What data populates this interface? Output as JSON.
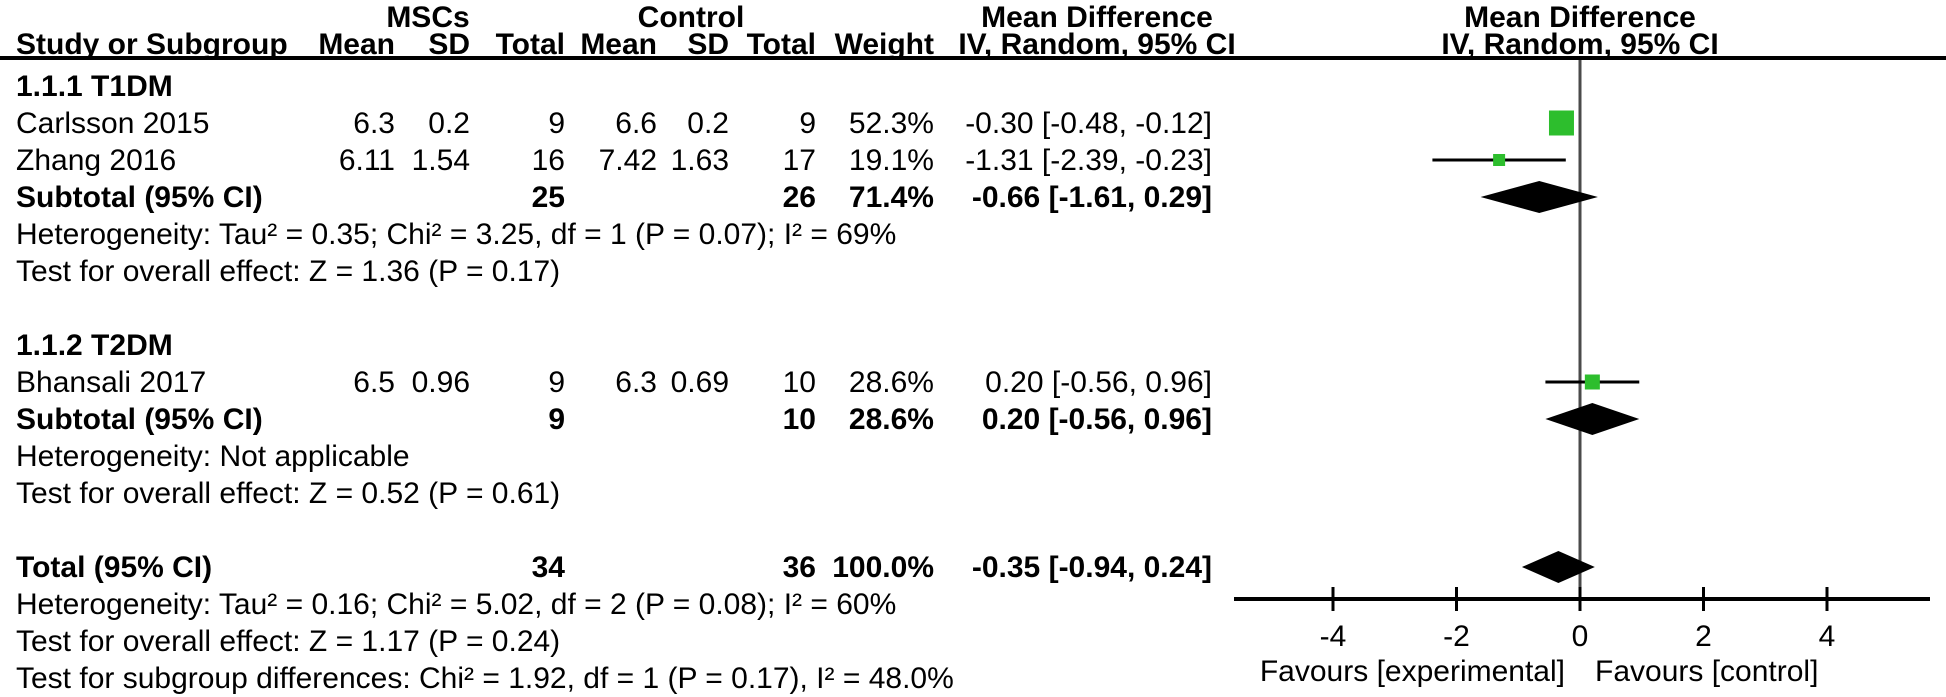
{
  "header": {
    "group1": "MSCs",
    "group2": "Control",
    "col_study": "Study or Subgroup",
    "col_mean": "Mean",
    "col_sd": "SD",
    "col_total": "Total",
    "col_weight": "Weight",
    "effect_title": "Mean Difference",
    "effect_subtitle": "IV, Random, 95% CI"
  },
  "sections": [
    {
      "label": "1.1.1 T1DM",
      "studies": [
        {
          "name": "Carlsson 2015",
          "mean1": "6.3",
          "sd1": "0.2",
          "total1": "9",
          "mean2": "6.6",
          "sd2": "0.2",
          "total2": "9",
          "weight": "52.3%",
          "ci": "-0.30 [-0.48, -0.12]"
        },
        {
          "name": "Zhang 2016",
          "mean1": "6.11",
          "sd1": "1.54",
          "total1": "16",
          "mean2": "7.42",
          "sd2": "1.63",
          "total2": "17",
          "weight": "19.1%",
          "ci": "-1.31 [-2.39, -0.23]"
        }
      ],
      "subtotal": {
        "name": "Subtotal (95% CI)",
        "total1": "25",
        "total2": "26",
        "weight": "71.4%",
        "ci": "-0.66 [-1.61, 0.29]"
      },
      "heterogeneity": "Heterogeneity: Tau² = 0.35; Chi² = 3.25, df = 1 (P = 0.07); I² = 69%",
      "overall_effect": "Test for overall effect: Z = 1.36 (P = 0.17)"
    },
    {
      "label": "1.1.2 T2DM",
      "studies": [
        {
          "name": "Bhansali 2017",
          "mean1": "6.5",
          "sd1": "0.96",
          "total1": "9",
          "mean2": "6.3",
          "sd2": "0.69",
          "total2": "10",
          "weight": "28.6%",
          "ci": "0.20 [-0.56, 0.96]"
        }
      ],
      "subtotal": {
        "name": "Subtotal (95% CI)",
        "total1": "9",
        "total2": "10",
        "weight": "28.6%",
        "ci": "0.20 [-0.56, 0.96]"
      },
      "heterogeneity": "Heterogeneity: Not applicable",
      "overall_effect": "Test for overall effect: Z = 0.52 (P = 0.61)"
    }
  ],
  "total": {
    "name": "Total (95% CI)",
    "total1": "34",
    "total2": "36",
    "weight": "100.0%",
    "ci": "-0.35 [-0.94, 0.24]",
    "heterogeneity": "Heterogeneity: Tau² = 0.16; Chi² = 5.02, df = 2 (P = 0.08); I² = 60%",
    "overall_effect": "Test for overall effect: Z = 1.17 (P = 0.24)",
    "subgroup_diff": "Test for subgroup differences: Chi² = 1.92, df = 1 (P = 0.17), I² = 48.0%"
  },
  "chart_data": {
    "type": "scatter",
    "variant": "forest-plot",
    "title": "Mean Difference",
    "method": "IV, Random, 95% CI",
    "axis": {
      "ticks": [
        -4,
        -2,
        0,
        2,
        4
      ],
      "range": [
        -5.6,
        5.7
      ],
      "zero_reference": 0,
      "favours_left": "Favours [experimental]",
      "favours_right": "Favours [control]"
    },
    "studies": [
      {
        "key": "carlsson-2015",
        "label": "Carlsson 2015",
        "md": -0.3,
        "ci_low": -0.48,
        "ci_high": -0.12,
        "weight_pct": 52.3
      },
      {
        "key": "zhang-2016",
        "label": "Zhang 2016",
        "md": -1.31,
        "ci_low": -2.39,
        "ci_high": -0.23,
        "weight_pct": 19.1
      },
      {
        "key": "bhansali-2017",
        "label": "Bhansali 2017",
        "md": 0.2,
        "ci_low": -0.56,
        "ci_high": 0.96,
        "weight_pct": 28.6
      }
    ],
    "diamonds": [
      {
        "key": "subtotal-t1dm",
        "label": "Subtotal (95% CI) T1DM",
        "md": -0.66,
        "ci_low": -1.61,
        "ci_high": 0.29
      },
      {
        "key": "subtotal-t2dm",
        "label": "Subtotal (95% CI) T2DM",
        "md": 0.2,
        "ci_low": -0.56,
        "ci_high": 0.96
      },
      {
        "key": "total",
        "label": "Total (95% CI)",
        "md": -0.35,
        "ci_low": -0.94,
        "ci_high": 0.24
      }
    ]
  },
  "colors": {
    "marker_green": "#2DBE2D",
    "diamond": "#000000",
    "axis": "#000000",
    "zero_line": "#4A4A4A",
    "text": "#000000"
  }
}
